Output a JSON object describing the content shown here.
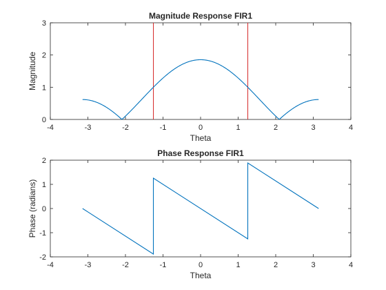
{
  "chart_data": [
    {
      "type": "line",
      "title": "Magnitude Response FIR1",
      "xlabel": "Theta",
      "ylabel": "Magnitude",
      "xlim": [
        -4,
        4
      ],
      "ylim": [
        0,
        3
      ],
      "xticks": [
        -4,
        -3,
        -2,
        -1,
        0,
        1,
        2,
        3,
        4
      ],
      "yticks": [
        0,
        1,
        2,
        3
      ],
      "grid": false,
      "series": [
        {
          "kind": "function",
          "expression": "|1 + 2cos(theta)| / (1 + 2cos(1.2566))",
          "x_range": [
            -3.1416,
            3.1416
          ],
          "color": "#0072BD"
        }
      ],
      "vlines": [
        {
          "x": -1.2566,
          "color": "#D62728"
        },
        {
          "x": 1.2566,
          "color": "#D62728"
        }
      ]
    },
    {
      "type": "line",
      "title": "Phase Response FIR1",
      "xlabel": "Theta",
      "ylabel": "Phase (radians)",
      "xlim": [
        -4,
        4
      ],
      "ylim": [
        -2,
        2
      ],
      "xticks": [
        -4,
        -3,
        -2,
        -1,
        0,
        1,
        2,
        3,
        4
      ],
      "yticks": [
        -2,
        -1,
        0,
        1,
        2
      ],
      "grid": false,
      "series": [
        {
          "x": [
            -3.1416,
            -1.2566,
            -1.2566,
            1.2566,
            1.2566,
            3.1416
          ],
          "y": [
            0.0,
            -1.885,
            1.2566,
            -1.2566,
            1.885,
            0.0
          ],
          "color": "#0072BD"
        }
      ]
    }
  ]
}
